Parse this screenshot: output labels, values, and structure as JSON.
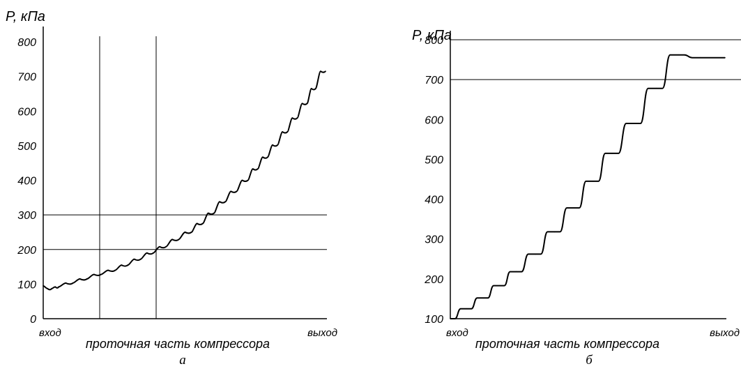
{
  "chart_data": [
    {
      "type": "line",
      "ylabel": "P, кПа",
      "xlabel": "проточная часть компрессора",
      "x_start_label": "вход",
      "x_end_label": "выход",
      "panel_label": "а",
      "ylim": [
        0,
        800
      ],
      "yticks": [
        "0",
        "100",
        "200",
        "300",
        "400",
        "500",
        "600",
        "700",
        "800"
      ],
      "xlim": [
        0,
        1
      ],
      "horizontal_lines": [
        200,
        300
      ],
      "vertical_lines": [
        0.2,
        0.4
      ],
      "series": [
        {
          "stepped": false,
          "x": [
            0.0,
            0.03,
            0.055,
            0.105,
            0.155,
            0.205,
            0.255,
            0.3,
            0.345,
            0.39,
            0.435,
            0.48,
            0.525,
            0.565,
            0.605,
            0.645,
            0.685,
            0.725,
            0.76,
            0.795,
            0.83,
            0.865,
            0.9,
            0.935,
            0.965,
            1.0
          ],
          "y": [
            95,
            87,
            92,
            103,
            115,
            128,
            140,
            155,
            172,
            190,
            208,
            229,
            250,
            275,
            305,
            338,
            368,
            400,
            433,
            467,
            502,
            540,
            580,
            622,
            665,
            715
          ]
        }
      ]
    },
    {
      "type": "line",
      "ylabel": "P, кПа",
      "xlabel": "проточная часть компрессора",
      "x_start_label": "вход",
      "x_end_label": "выход",
      "panel_label": "б",
      "ylim": [
        100,
        800
      ],
      "yticks": [
        "100",
        "200",
        "300",
        "400",
        "500",
        "600",
        "700",
        "800"
      ],
      "xlim": [
        0,
        1
      ],
      "horizontal_lines": [
        700,
        800
      ],
      "vertical_lines": [],
      "series": [
        {
          "stepped": true,
          "x": [
            0.0,
            0.06,
            0.12,
            0.18,
            0.24,
            0.31,
            0.38,
            0.45,
            0.52,
            0.59,
            0.67,
            0.75,
            0.83,
            0.91,
            1.0
          ],
          "y": [
            100,
            125,
            152,
            183,
            218,
            262,
            318,
            378,
            445,
            515,
            590,
            678,
            762,
            755,
            755
          ]
        }
      ]
    }
  ]
}
